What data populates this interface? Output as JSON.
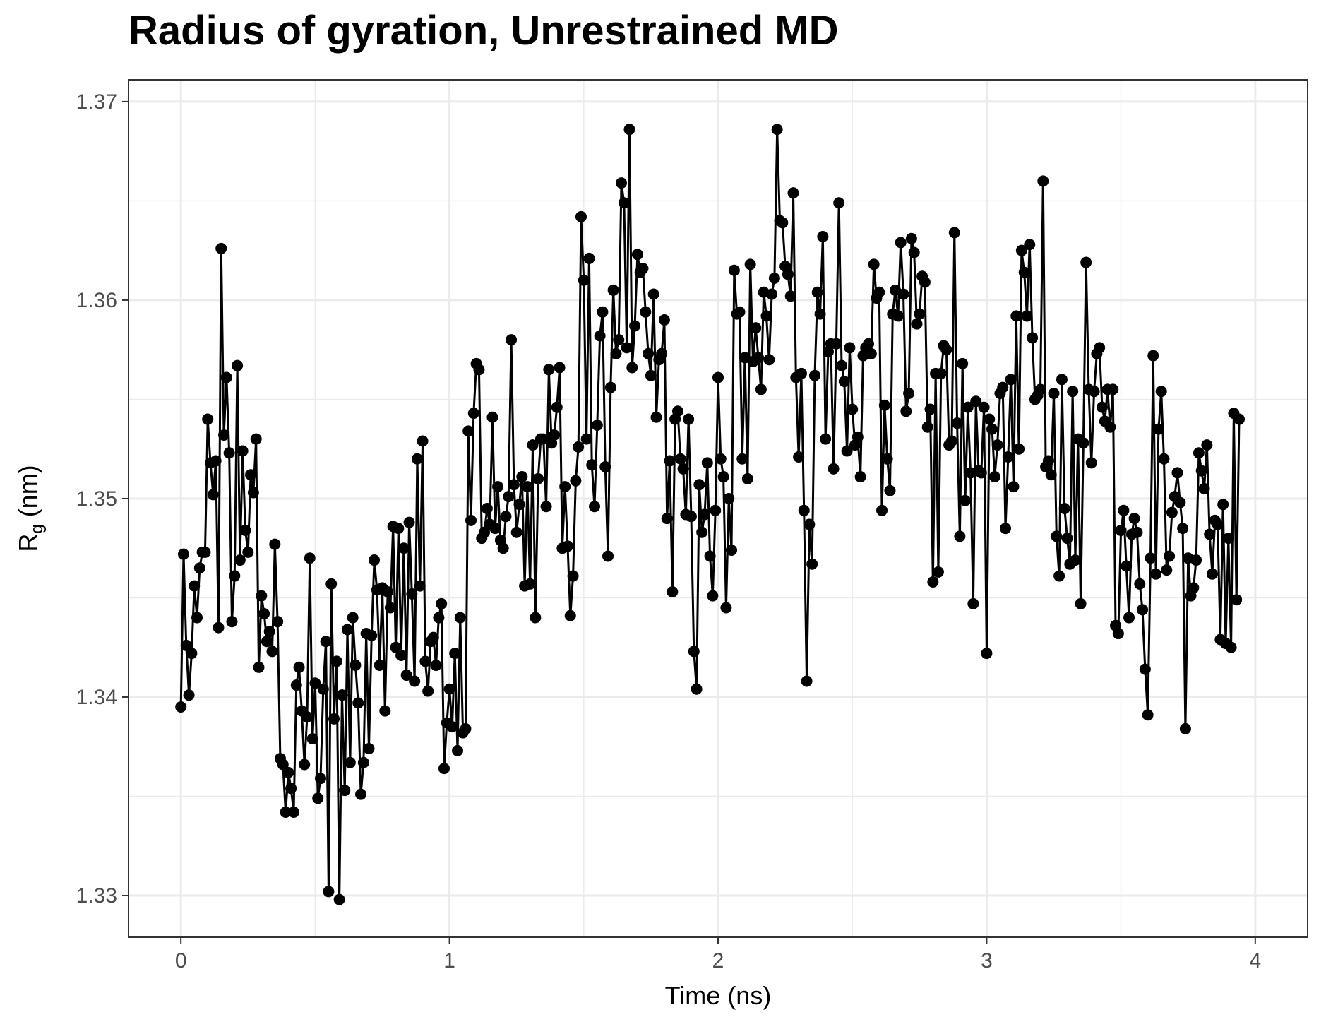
{
  "chart_data": {
    "type": "line",
    "title": "Radius of gyration, Unrestrained MD",
    "xlabel": "Time (ns)",
    "ylabel_main": "R",
    "ylabel_sub": "g",
    "ylabel_tail": " (nm)",
    "xlim": [
      -0.195,
      4.195
    ],
    "ylim": [
      1.3279,
      1.3711
    ],
    "x_ticks": [
      0,
      1,
      2,
      3,
      4
    ],
    "x_tick_labels": [
      "0",
      "1",
      "2",
      "3",
      "4"
    ],
    "y_ticks": [
      1.33,
      1.34,
      1.35,
      1.36,
      1.37
    ],
    "y_tick_labels": [
      "1.33",
      "1.34",
      "1.35",
      "1.36",
      "1.37"
    ],
    "grid": true,
    "legend": "none",
    "series": [
      {
        "color": "#000000",
        "marker": "circle",
        "x_start": 0,
        "x_step": 0.01,
        "values": [
          1.3395,
          1.3472,
          1.3426,
          1.3401,
          1.3422,
          1.3456,
          1.344,
          1.3465,
          1.3473,
          1.3473,
          1.354,
          1.3518,
          1.3502,
          1.3519,
          1.3435,
          1.3626,
          1.3532,
          1.3561,
          1.3523,
          1.3438,
          1.3461,
          1.3567,
          1.3469,
          1.3524,
          1.3484,
          1.3473,
          1.3512,
          1.3503,
          1.353,
          1.3415,
          1.3451,
          1.3442,
          1.3428,
          1.3433,
          1.3423,
          1.3477,
          1.3438,
          1.3369,
          1.3366,
          1.3342,
          1.3362,
          1.3354,
          1.3342,
          1.3406,
          1.3415,
          1.3393,
          1.3366,
          1.339,
          1.347,
          1.3379,
          1.3407,
          1.3349,
          1.3359,
          1.3404,
          1.3428,
          1.3302,
          1.3457,
          1.3389,
          1.3418,
          1.3298,
          1.3401,
          1.3353,
          1.3434,
          1.3367,
          1.344,
          1.3416,
          1.3397,
          1.3351,
          1.3367,
          1.3432,
          1.3374,
          1.3431,
          1.3469,
          1.3454,
          1.3416,
          1.3455,
          1.3393,
          1.3453,
          1.3445,
          1.3486,
          1.3425,
          1.3485,
          1.3421,
          1.3475,
          1.3411,
          1.3488,
          1.3452,
          1.3408,
          1.352,
          1.3456,
          1.3529,
          1.3418,
          1.3403,
          1.3428,
          1.343,
          1.3416,
          1.344,
          1.3447,
          1.3364,
          1.3387,
          1.3404,
          1.3385,
          1.3422,
          1.3373,
          1.344,
          1.3382,
          1.3384,
          1.3534,
          1.3489,
          1.3543,
          1.3568,
          1.3565,
          1.348,
          1.3483,
          1.3495,
          1.3487,
          1.3541,
          1.3485,
          1.3506,
          1.3479,
          1.3475,
          1.3491,
          1.3501,
          1.358,
          1.3507,
          1.3483,
          1.3497,
          1.3511,
          1.3456,
          1.3506,
          1.3457,
          1.3527,
          1.344,
          1.351,
          1.353,
          1.353,
          1.3496,
          1.3565,
          1.3528,
          1.3532,
          1.3546,
          1.3566,
          1.3475,
          1.3506,
          1.3476,
          1.3441,
          1.3461,
          1.3509,
          1.3526,
          1.3642,
          1.361,
          1.353,
          1.3621,
          1.3517,
          1.3496,
          1.3537,
          1.3582,
          1.3594,
          1.3516,
          1.3471,
          1.3556,
          1.3605,
          1.3573,
          1.358,
          1.3659,
          1.3649,
          1.3576,
          1.3686,
          1.3566,
          1.3587,
          1.3623,
          1.3614,
          1.3616,
          1.3594,
          1.3573,
          1.3562,
          1.3603,
          1.3541,
          1.357,
          1.3573,
          1.359,
          1.349,
          1.3519,
          1.3453,
          1.354,
          1.3544,
          1.352,
          1.3515,
          1.3492,
          1.354,
          1.3491,
          1.3423,
          1.3404,
          1.3507,
          1.3483,
          1.3492,
          1.3518,
          1.3471,
          1.3451,
          1.3494,
          1.3561,
          1.352,
          1.3511,
          1.3445,
          1.35,
          1.3474,
          1.3615,
          1.3593,
          1.3594,
          1.352,
          1.3571,
          1.351,
          1.3618,
          1.3569,
          1.3586,
          1.3571,
          1.3555,
          1.3604,
          1.3592,
          1.357,
          1.3603,
          1.3611,
          1.3686,
          1.364,
          1.3639,
          1.3617,
          1.3613,
          1.3602,
          1.3654,
          1.3561,
          1.3521,
          1.3563,
          1.3494,
          1.3408,
          1.3487,
          1.3467,
          1.3562,
          1.3604,
          1.3593,
          1.3632,
          1.353,
          1.3574,
          1.3578,
          1.3515,
          1.3578,
          1.3649,
          1.3567,
          1.3559,
          1.3524,
          1.3576,
          1.3545,
          1.3527,
          1.3531,
          1.3511,
          1.3572,
          1.3576,
          1.3578,
          1.3573,
          1.3618,
          1.3601,
          1.3604,
          1.3494,
          1.3547,
          1.352,
          1.3504,
          1.3593,
          1.3605,
          1.3592,
          1.3629,
          1.3603,
          1.3544,
          1.3553,
          1.3631,
          1.3624,
          1.3588,
          1.3593,
          1.3612,
          1.3609,
          1.3536,
          1.3545,
          1.3458,
          1.3563,
          1.3463,
          1.3563,
          1.3577,
          1.3575,
          1.3527,
          1.3529,
          1.3634,
          1.3538,
          1.3481,
          1.3568,
          1.3499,
          1.3546,
          1.3513,
          1.3447,
          1.3549,
          1.3514,
          1.3513,
          1.3546,
          1.3422,
          1.354,
          1.3535,
          1.3511,
          1.3527,
          1.3553,
          1.3556,
          1.3485,
          1.3521,
          1.356,
          1.3506,
          1.3592,
          1.3525,
          1.3625,
          1.3614,
          1.3592,
          1.3628,
          1.3581,
          1.355,
          1.3552,
          1.3555,
          1.366,
          1.3516,
          1.3519,
          1.3512,
          1.3553,
          1.3481,
          1.3461,
          1.356,
          1.3495,
          1.348,
          1.3467,
          1.3554,
          1.3469,
          1.353,
          1.3447,
          1.3528,
          1.3619,
          1.3555,
          1.3518,
          1.3554,
          1.3573,
          1.3576,
          1.3546,
          1.3539,
          1.3555,
          1.3536,
          1.3555,
          1.3436,
          1.3432,
          1.3484,
          1.3494,
          1.3466,
          1.344,
          1.3482,
          1.349,
          1.3483,
          1.3457,
          1.3444,
          1.3414,
          1.3391,
          1.347,
          1.3572,
          1.3462,
          1.3535,
          1.3554,
          1.352,
          1.3464,
          1.3471,
          1.3493,
          1.3501,
          1.3513,
          1.3498,
          1.3485,
          1.3384,
          1.347,
          1.3451,
          1.3455,
          1.3469,
          1.3523,
          1.3514,
          1.3505,
          1.3527,
          1.3482,
          1.3462,
          1.3489,
          1.3487,
          1.3429,
          1.3497,
          1.3427,
          1.348,
          1.3425,
          1.3543,
          1.3449,
          1.354
        ]
      }
    ]
  }
}
